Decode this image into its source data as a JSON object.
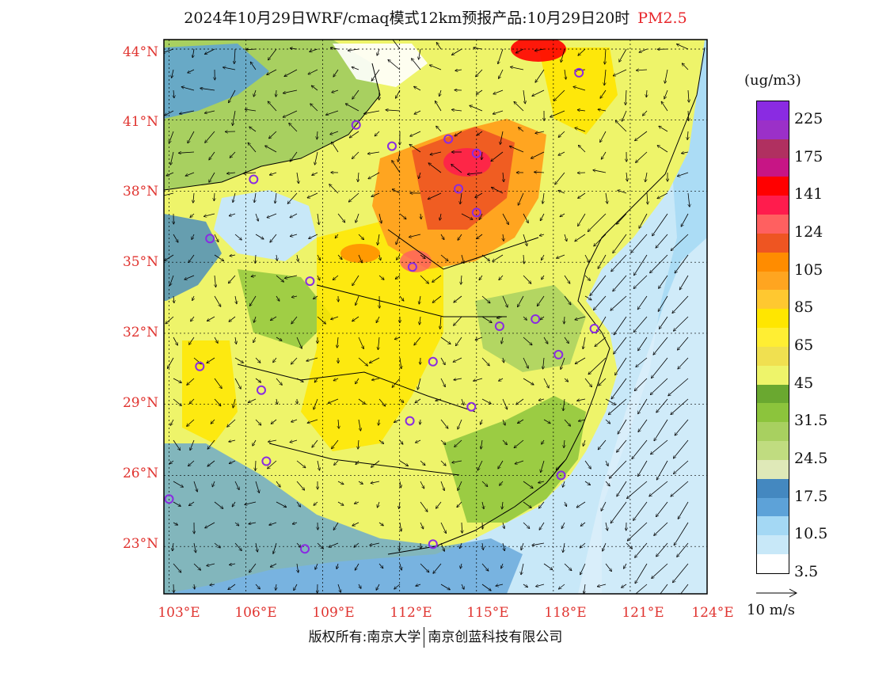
{
  "title": {
    "main": "2024年10月29日WRF/cmaq模式12km预报产品:10月29日20时",
    "product": "PM2.5"
  },
  "latitude_labels": [
    "44°N",
    "41°N",
    "38°N",
    "35°N",
    "32°N",
    "29°N",
    "26°N",
    "23°N"
  ],
  "longitude_labels": [
    "103°E",
    "106°E",
    "109°E",
    "112°E",
    "115°E",
    "118°E",
    "121°E",
    "124°E"
  ],
  "legend": {
    "units": "(ug/m3)",
    "labels": [
      "225",
      "175",
      "141",
      "124",
      "105",
      "85",
      "65",
      "45",
      "31.5",
      "24.5",
      "17.5",
      "10.5",
      "3.5"
    ],
    "colors": [
      "#8a2be2",
      "#9b30c8",
      "#b03060",
      "#c71585",
      "#ff0000",
      "#ff1c4d",
      "#ff6060",
      "#ee5522",
      "#ff8c00",
      "#ffa520",
      "#ffc830",
      "#ffe600",
      "#ffee33",
      "#f0e050",
      "#eef46a",
      "#6aa830",
      "#8cc43c",
      "#a8d060",
      "#c0dc80",
      "#dfe9b8",
      "#4488c0",
      "#5da2d8",
      "#a4d8f4",
      "#c8e8f8",
      "#ffffff"
    ]
  },
  "wind_reference": {
    "label": "10 m/s"
  },
  "copyright": {
    "left": "版权所有:南京大学",
    "right": "南京创蓝科技有限公司"
  },
  "map": {
    "lon_range": [
      102.8,
      124.0
    ],
    "lat_range": [
      21.0,
      44.4
    ],
    "stations": [
      [
        119.0,
        43.0
      ],
      [
        113.9,
        40.2
      ],
      [
        115.0,
        39.6
      ],
      [
        111.7,
        39.9
      ],
      [
        114.3,
        38.1
      ],
      [
        106.3,
        38.5
      ],
      [
        115.0,
        37.1
      ],
      [
        104.6,
        36.0
      ],
      [
        108.5,
        34.2
      ],
      [
        112.5,
        34.8
      ],
      [
        115.9,
        32.3
      ],
      [
        117.3,
        32.6
      ],
      [
        119.6,
        32.2
      ],
      [
        118.2,
        31.1
      ],
      [
        113.3,
        30.8
      ],
      [
        104.2,
        30.6
      ],
      [
        106.6,
        29.6
      ],
      [
        114.8,
        28.9
      ],
      [
        112.4,
        28.3
      ],
      [
        106.8,
        26.6
      ],
      [
        118.3,
        26.0
      ],
      [
        103.0,
        25.0
      ],
      [
        108.3,
        22.9
      ],
      [
        113.3,
        23.1
      ],
      [
        110.3,
        40.8
      ]
    ]
  }
}
